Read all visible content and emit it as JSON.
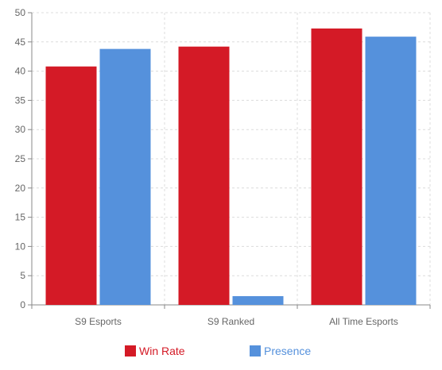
{
  "chart_data": {
    "type": "bar",
    "categories": [
      "S9 Esports",
      "S9 Ranked",
      "All Time Esports"
    ],
    "series": [
      {
        "name": "Win Rate",
        "values": [
          40.8,
          44.2,
          47.3
        ],
        "color": "#d41a26"
      },
      {
        "name": "Presence",
        "values": [
          43.8,
          1.5,
          45.9
        ],
        "color": "#5591dc"
      }
    ],
    "ylim": [
      0,
      50
    ],
    "yticks": [
      0,
      5,
      10,
      15,
      20,
      25,
      30,
      35,
      40,
      45,
      50
    ],
    "grid": true,
    "legend_position": "bottom"
  }
}
